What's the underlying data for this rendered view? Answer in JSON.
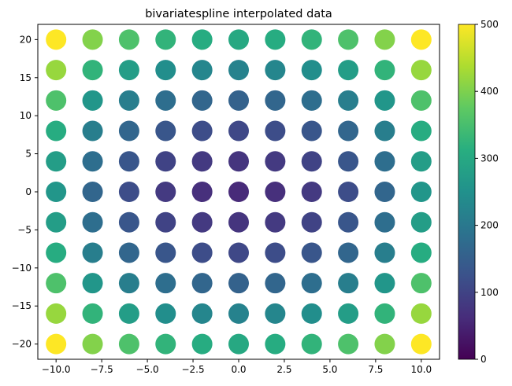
{
  "chart_data": {
    "type": "scatter",
    "title": "bivariatespline interpolated data",
    "xlabel": "",
    "ylabel": "",
    "xlim": [
      -11,
      11
    ],
    "ylim": [
      -22,
      22
    ],
    "x_ticks": [
      -10,
      -7.5,
      -5,
      -2.5,
      0,
      2.5,
      5,
      7.5,
      10
    ],
    "x_tick_labels": [
      "−10.0",
      "−7.5",
      "−5.0",
      "−2.5",
      "0.0",
      "2.5",
      "5.0",
      "7.5",
      "10.0"
    ],
    "y_ticks": [
      -20,
      -15,
      -10,
      -5,
      0,
      5,
      10,
      15,
      20
    ],
    "y_tick_labels": [
      "−20",
      "−15",
      "−10",
      "−5",
      "0",
      "5",
      "10",
      "15",
      "20"
    ],
    "x": [
      -10,
      -8,
      -6,
      -4,
      -2,
      0,
      2,
      4,
      6,
      8,
      10
    ],
    "y": [
      -20,
      -16,
      -12,
      -8,
      -4,
      0,
      4,
      8,
      12,
      16,
      20
    ],
    "values": [
      [
        500,
        404,
        356,
        324,
        308,
        300,
        308,
        324,
        356,
        404,
        500
      ],
      [
        420,
        324,
        276,
        244,
        228,
        220,
        228,
        244,
        276,
        324,
        420
      ],
      [
        356,
        260,
        212,
        180,
        164,
        156,
        164,
        180,
        212,
        260,
        356
      ],
      [
        308,
        212,
        164,
        132,
        116,
        108,
        116,
        132,
        164,
        212,
        308
      ],
      [
        276,
        180,
        132,
        100,
        84,
        76,
        84,
        100,
        132,
        180,
        276
      ],
      [
        260,
        164,
        116,
        84,
        68,
        60,
        68,
        84,
        116,
        164,
        260
      ],
      [
        276,
        180,
        132,
        100,
        84,
        76,
        84,
        100,
        132,
        180,
        276
      ],
      [
        308,
        212,
        164,
        132,
        116,
        108,
        116,
        132,
        164,
        212,
        308
      ],
      [
        356,
        260,
        212,
        180,
        164,
        156,
        164,
        180,
        212,
        260,
        356
      ],
      [
        420,
        324,
        276,
        244,
        228,
        220,
        228,
        244,
        276,
        324,
        420
      ],
      [
        500,
        404,
        356,
        324,
        308,
        300,
        308,
        324,
        356,
        404,
        500
      ]
    ],
    "colormap": "viridis",
    "clim": [
      0,
      500
    ],
    "colorbar_ticks": [
      0,
      100,
      200,
      300,
      400,
      500
    ],
    "colorbar_tick_labels": [
      "0",
      "100",
      "200",
      "300",
      "400",
      "500"
    ],
    "grid": false,
    "legend": "none"
  }
}
